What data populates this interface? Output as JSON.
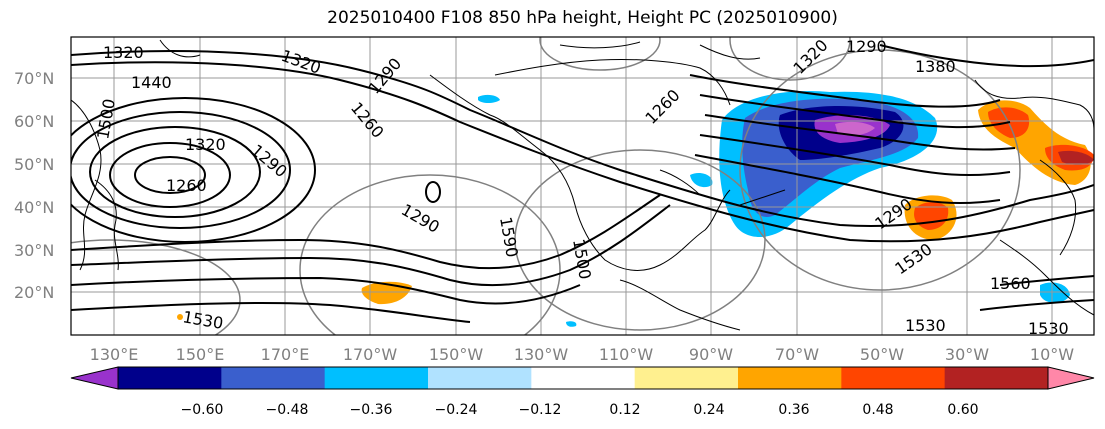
{
  "title": "2025010400 F108 850 hPa height, Height PC (2025010900)",
  "map": {
    "lat_labels": [
      "70°N",
      "60°N",
      "50°N",
      "40°N",
      "30°N",
      "20°N"
    ],
    "lon_labels": [
      "130°E",
      "150°E",
      "170°E",
      "170°W",
      "150°W",
      "130°W",
      "110°W",
      "90°W",
      "70°W",
      "50°W",
      "30°W",
      "10°W"
    ],
    "contour_labels": [
      "1320",
      "1320",
      "1290",
      "1380",
      "1440",
      "1500",
      "1320",
      "1260",
      "1290",
      "1290",
      "1260",
      "1290",
      "1590",
      "1500",
      "1260",
      "1320",
      "1290",
      "1530",
      "1560",
      "1530",
      "1530",
      "1530"
    ],
    "contour_color": "#000000",
    "pc_contour_color": "#808080"
  },
  "colorbar": {
    "tick_labels": [
      "−0.60",
      "−0.48",
      "−0.36",
      "−0.24",
      "−0.12",
      "0.12",
      "0.24",
      "0.36",
      "0.48",
      "0.60"
    ],
    "colors": [
      "#9932cc",
      "#00008b",
      "#3a5fcd",
      "#00bfff",
      "#b0e2ff",
      "#ffffff",
      "#fff08f",
      "#ffa500",
      "#ff4500",
      "#b22222",
      "#ff87a8"
    ]
  }
}
